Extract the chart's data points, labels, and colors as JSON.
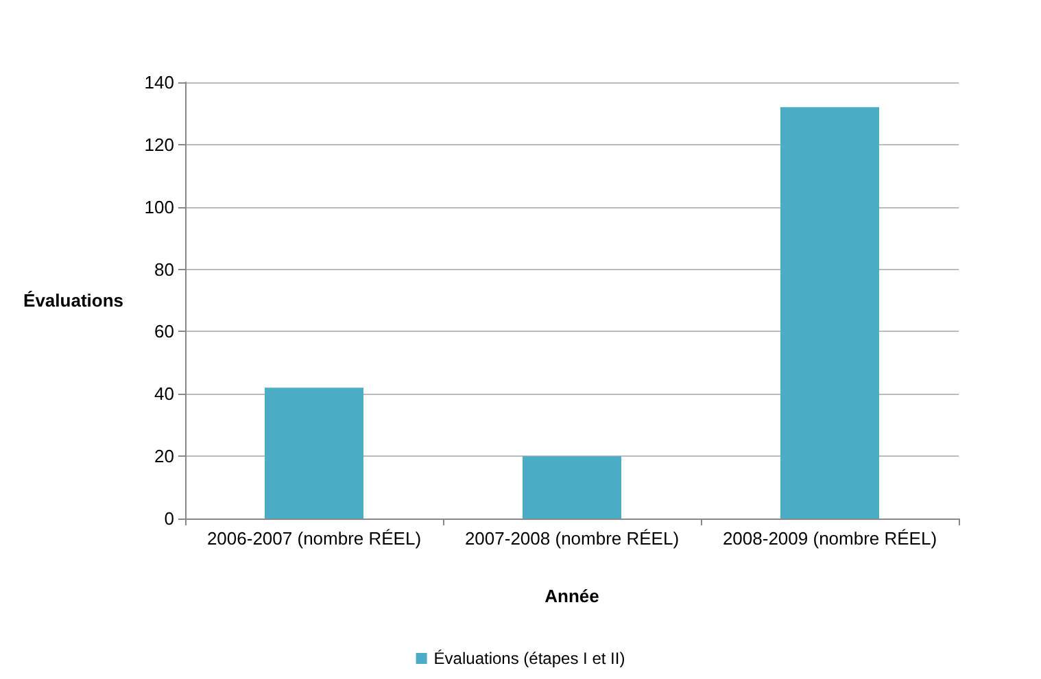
{
  "chart_data": {
    "type": "bar",
    "xlabel": "Année",
    "ylabel": "Évaluations",
    "categories": [
      "2006-2007 (nombre RÉEL)",
      "2007-2008 (nombre RÉEL)",
      "2008-2009 (nombre RÉEL)"
    ],
    "series": [
      {
        "name": "Évaluations (étapes I et II)",
        "color": "#4bacc6",
        "values": [
          42,
          20,
          132
        ]
      }
    ],
    "ylim": [
      0,
      140
    ],
    "yticks": [
      0,
      20,
      40,
      60,
      80,
      100,
      120,
      140
    ],
    "grid": "y",
    "legend": "bottom"
  }
}
